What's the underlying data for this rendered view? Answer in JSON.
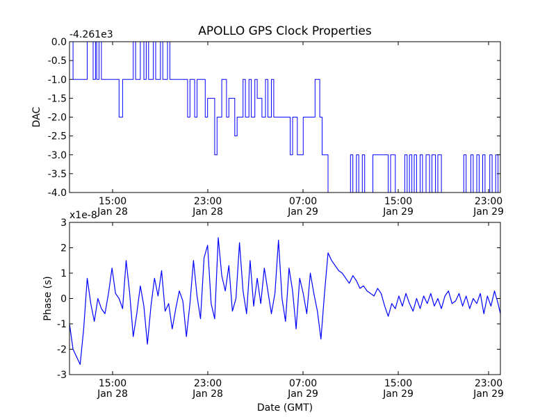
{
  "title": "APOLLO GPS Clock Properties",
  "chart_data": [
    {
      "type": "line",
      "ylabel": "DAC",
      "xlabel": "",
      "offset_label": "-4.261e3",
      "ylim": [
        -4.0,
        0.0
      ],
      "yticks": [
        "0.0",
        "-0.5",
        "-1.0",
        "-1.5",
        "-2.0",
        "-2.5",
        "-3.0",
        "-3.5",
        "-4.0"
      ],
      "xticks": [
        {
          "time": "15:00",
          "date": "Jan 28"
        },
        {
          "time": "23:00",
          "date": "Jan 28"
        },
        {
          "time": "07:00",
          "date": "Jan 29"
        },
        {
          "time": "15:00",
          "date": "Jan 29"
        },
        {
          "time": "23:00",
          "date": "Jan 29"
        }
      ],
      "x_hours_range": [
        11.8,
        48.3
      ],
      "grid": false,
      "color": "#0000ff",
      "series": [
        {
          "x_hours": [
            11.8,
            12.0,
            12.1,
            13.2,
            13.3,
            13.8,
            14.0,
            14.1,
            14.3,
            14.5,
            14.6,
            14.8,
            15.0,
            15.1,
            15.4,
            15.5,
            16.0,
            16.3,
            16.5,
            17.2,
            17.4,
            17.8,
            18.1,
            18.3,
            18.5,
            18.9,
            19.1,
            19.5,
            19.7,
            20.1,
            20.3,
            20.8,
            21.0,
            21.8,
            22.0,
            22.4,
            22.6,
            23.3,
            23.5,
            24.1,
            24.3,
            24.5,
            24.7,
            25.1,
            25.3,
            25.8,
            26.0,
            26.5,
            26.7,
            27.0,
            27.2,
            27.5,
            27.7,
            28.1,
            28.4,
            28.6,
            28.9,
            29.1,
            29.3,
            29.6,
            29.8,
            30.5,
            30.7,
            31.1,
            31.3,
            31.6,
            31.9,
            32.4,
            32.6,
            33.0,
            33.2,
            33.5,
            33.7,
            35.6,
            35.8,
            36.1,
            36.3,
            36.6,
            36.8,
            37.5,
            37.7,
            38.8,
            39.0,
            39.2,
            39.4,
            40.2,
            40.4,
            40.6,
            40.8,
            41.0,
            41.2,
            41.5,
            41.7,
            42.0,
            42.3,
            42.5,
            42.8,
            43.0,
            43.3,
            45.2,
            45.4,
            45.8,
            46.0,
            46.3,
            46.5,
            46.8,
            47.0,
            47.4,
            47.6,
            47.9,
            48.1,
            48.3
          ],
          "values": [
            0.0,
            0.0,
            -1.0,
            -1.0,
            0.0,
            -1.0,
            0.0,
            -1.0,
            0.0,
            -1.0,
            -1.0,
            -1.0,
            -1.0,
            -1.0,
            -1.0,
            -1.0,
            -2.0,
            -1.0,
            -1.0,
            0.0,
            -1.0,
            0.0,
            -1.0,
            0.0,
            -1.0,
            0.0,
            -1.0,
            0.0,
            -1.0,
            0.0,
            -1.0,
            -1.0,
            -1.0,
            -2.0,
            -1.0,
            -2.0,
            -1.0,
            -2.0,
            -1.5,
            -3.0,
            -2.0,
            -2.0,
            -1.0,
            -2.0,
            -1.5,
            -2.5,
            -2.0,
            -1.0,
            -2.0,
            -1.0,
            -2.0,
            -1.0,
            -1.5,
            -2.0,
            -1.0,
            -2.0,
            -1.0,
            -2.0,
            -2.0,
            -2.0,
            -2.0,
            -3.0,
            -2.0,
            -3.0,
            -3.0,
            -2.0,
            -2.0,
            -2.0,
            -1.0,
            -2.0,
            -3.0,
            -3.0,
            -4.0,
            -3.0,
            -4.0,
            -3.0,
            -4.0,
            -3.0,
            -4.0,
            -3.0,
            -3.0,
            -4.0,
            -3.0,
            -3.0,
            -4.0,
            -3.0,
            -4.0,
            -3.0,
            -4.0,
            -3.0,
            -4.0,
            -3.0,
            -4.0,
            -3.0,
            -4.0,
            -3.0,
            -4.0,
            -3.0,
            -4.0,
            -3.0,
            -4.0,
            -3.0,
            -4.0,
            -3.0,
            -4.0,
            -3.0,
            -4.0,
            -3.0,
            -4.0,
            -3.0,
            -4.0,
            -3.0
          ]
        }
      ]
    },
    {
      "type": "line",
      "ylabel": "Phase (s)",
      "xlabel": "Date (GMT)",
      "offset_label": "x1e-8",
      "ylim": [
        -3,
        3
      ],
      "yticks": [
        "3",
        "2",
        "1",
        "0",
        "-1",
        "-2",
        "-3"
      ],
      "xticks": [
        {
          "time": "15:00",
          "date": "Jan 28"
        },
        {
          "time": "23:00",
          "date": "Jan 28"
        },
        {
          "time": "07:00",
          "date": "Jan 29"
        },
        {
          "time": "15:00",
          "date": "Jan 29"
        },
        {
          "time": "23:00",
          "date": "Jan 29"
        }
      ],
      "x_hours_range": [
        11.8,
        48.3
      ],
      "grid": false,
      "color": "#0000ff",
      "series": [
        {
          "x_hours": [
            11.8,
            12.1,
            12.4,
            12.7,
            13.0,
            13.3,
            13.6,
            13.9,
            14.2,
            14.5,
            14.8,
            15.1,
            15.4,
            15.7,
            16.0,
            16.3,
            16.6,
            16.9,
            17.2,
            17.5,
            17.8,
            18.1,
            18.4,
            18.7,
            19.0,
            19.3,
            19.6,
            19.9,
            20.2,
            20.5,
            20.8,
            21.1,
            21.4,
            21.7,
            22.0,
            22.3,
            22.6,
            22.9,
            23.2,
            23.5,
            23.8,
            24.1,
            24.4,
            24.7,
            25.0,
            25.3,
            25.6,
            25.9,
            26.2,
            26.5,
            26.8,
            27.1,
            27.4,
            27.7,
            28.0,
            28.3,
            28.6,
            28.9,
            29.2,
            29.5,
            29.8,
            30.1,
            30.4,
            30.7,
            31.0,
            31.3,
            31.6,
            31.9,
            32.2,
            32.5,
            32.8,
            33.1,
            33.4,
            33.7,
            34.0,
            34.3,
            34.6,
            34.9,
            35.2,
            35.5,
            35.8,
            36.1,
            36.4,
            36.7,
            37.0,
            37.3,
            37.6,
            37.9,
            38.2,
            38.5,
            38.8,
            39.1,
            39.4,
            39.7,
            40.0,
            40.3,
            40.6,
            40.9,
            41.2,
            41.5,
            41.8,
            42.1,
            42.4,
            42.7,
            43.0,
            43.3,
            43.6,
            43.9,
            44.2,
            44.5,
            44.8,
            45.1,
            45.4,
            45.7,
            46.0,
            46.3,
            46.6,
            46.9,
            47.2,
            47.5,
            47.8,
            48.1,
            48.3
          ],
          "values": [
            -1.0,
            -2.0,
            -2.3,
            -2.6,
            -1.2,
            0.8,
            -0.2,
            -0.9,
            0.0,
            -0.4,
            -0.6,
            0.2,
            1.2,
            0.2,
            0.0,
            -0.4,
            1.5,
            0.2,
            -1.5,
            -0.6,
            0.5,
            -0.3,
            -1.8,
            -0.3,
            0.8,
            0.1,
            1.1,
            -0.5,
            -0.2,
            -1.2,
            -0.4,
            0.3,
            -0.1,
            -1.5,
            -0.2,
            1.5,
            0.1,
            -0.8,
            1.6,
            2.1,
            -0.2,
            -0.8,
            2.4,
            0.9,
            0.3,
            1.3,
            -0.5,
            0.0,
            2.2,
            0.3,
            -0.6,
            1.5,
            -0.3,
            0.8,
            -0.2,
            1.2,
            0.3,
            -0.6,
            0.2,
            2.3,
            0.0,
            -0.9,
            1.2,
            0.3,
            -1.2,
            0.8,
            0.2,
            -0.6,
            1.0,
            0.2,
            -0.5,
            -1.6,
            0.2,
            1.8,
            1.5,
            1.3,
            1.1,
            1.0,
            0.8,
            0.6,
            0.9,
            0.7,
            0.4,
            0.5,
            0.3,
            0.2,
            0.1,
            0.4,
            0.2,
            -0.3,
            -0.7,
            -0.2,
            -0.4,
            0.1,
            -0.3,
            0.2,
            -0.2,
            -0.5,
            0.0,
            -0.4,
            0.1,
            -0.2,
            0.2,
            -0.3,
            0.0,
            -0.4,
            0.1,
            0.3,
            -0.2,
            -0.1,
            0.2,
            -0.3,
            0.1,
            -0.4,
            0.0,
            -0.2,
            0.2,
            -0.6,
            0.1,
            -0.3,
            0.3,
            -0.2,
            -0.6
          ]
        }
      ]
    }
  ]
}
